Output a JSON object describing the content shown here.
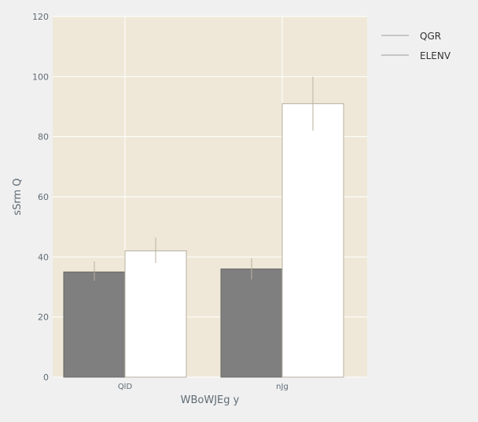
{
  "chart_data": {
    "type": "bar",
    "xlabel": "WBoWJEg y",
    "ylabel": "sSrm Q",
    "categories": [
      "QlD",
      "nJg"
    ],
    "ylim": [
      0,
      120
    ],
    "yticks": [
      0,
      20,
      40,
      60,
      80,
      100,
      120
    ],
    "grid": true,
    "legend_position": "outside-top-right",
    "series": [
      {
        "name": "QGR",
        "color": "#7f7f7f",
        "values": [
          35,
          36
        ],
        "error_low": [
          32,
          32.5
        ],
        "error_high": [
          38.5,
          39.5
        ]
      },
      {
        "name": "ELENV",
        "color": "#ffffff",
        "values": [
          42,
          91
        ],
        "error_low": [
          38,
          82
        ],
        "error_high": [
          46.5,
          100
        ]
      }
    ],
    "colors": {
      "plot_background": "#efe8d8",
      "page_background": "#f0f0f0",
      "grid": "#ffffff",
      "error_bar": "#b8b0a0",
      "text": "#5f6b74"
    }
  }
}
